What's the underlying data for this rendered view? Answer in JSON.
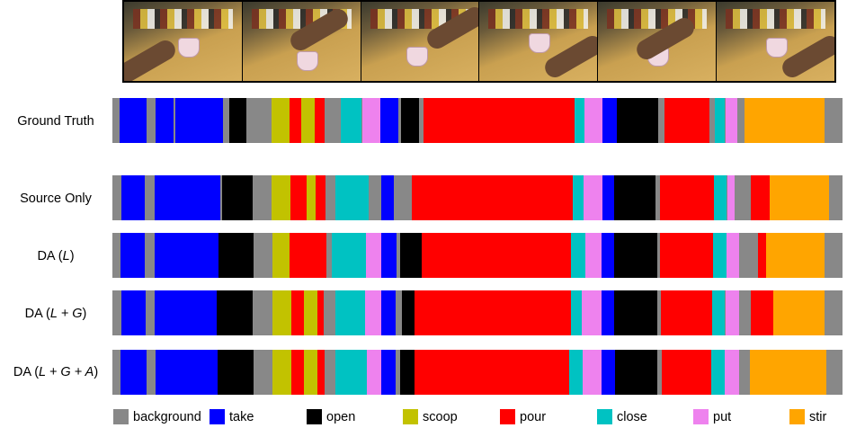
{
  "colors": {
    "background": "#888888",
    "take": "#0000ff",
    "open": "#000000",
    "scoop": "#c2c200",
    "pour": "#ff0000",
    "close": "#00c2c2",
    "put": "#ee82ee",
    "stir": "#ffa500"
  },
  "frames": [
    "frame-1",
    "frame-2",
    "frame-3",
    "frame-4",
    "frame-5",
    "frame-6"
  ],
  "rows": [
    {
      "label_pre": "Ground Truth",
      "label_it": "",
      "label_post": "",
      "segments": [
        [
          "background",
          0,
          8
        ],
        [
          "take",
          8,
          38
        ],
        [
          "background",
          38,
          48
        ],
        [
          "take",
          48,
          68
        ],
        [
          "background",
          68,
          70
        ],
        [
          "take",
          70,
          123
        ],
        [
          "background",
          123,
          130
        ],
        [
          "open",
          130,
          149
        ],
        [
          "background",
          149,
          177
        ],
        [
          "scoop",
          177,
          197
        ],
        [
          "pour",
          197,
          210
        ],
        [
          "scoop",
          210,
          225
        ],
        [
          "pour",
          225,
          236
        ],
        [
          "background",
          236,
          254
        ],
        [
          "close",
          254,
          277
        ],
        [
          "background",
          277,
          278
        ],
        [
          "put",
          278,
          298
        ],
        [
          "take",
          298,
          318
        ],
        [
          "background",
          318,
          321
        ],
        [
          "open",
          321,
          341
        ],
        [
          "background",
          341,
          346
        ],
        [
          "pour",
          346,
          514
        ],
        [
          "close",
          514,
          525
        ],
        [
          "put",
          525,
          545
        ],
        [
          "take",
          545,
          561
        ],
        [
          "open",
          561,
          607
        ],
        [
          "background",
          607,
          614
        ],
        [
          "pour",
          614,
          664
        ],
        [
          "background",
          664,
          670
        ],
        [
          "close",
          670,
          681
        ],
        [
          "background",
          681,
          682
        ],
        [
          "put",
          682,
          695
        ],
        [
          "background",
          695,
          703
        ],
        [
          "stir",
          703,
          792
        ],
        [
          "background",
          792,
          812
        ]
      ]
    },
    {
      "label_pre": "Source Only",
      "label_it": "",
      "label_post": "",
      "segments": [
        [
          "background",
          0,
          10
        ],
        [
          "take",
          10,
          36
        ],
        [
          "background",
          36,
          47
        ],
        [
          "take",
          47,
          120
        ],
        [
          "background",
          120,
          122
        ],
        [
          "open",
          122,
          156
        ],
        [
          "background",
          156,
          177
        ],
        [
          "scoop",
          177,
          198
        ],
        [
          "pour",
          198,
          216
        ],
        [
          "scoop",
          216,
          226
        ],
        [
          "pour",
          226,
          237
        ],
        [
          "background",
          237,
          248
        ],
        [
          "close",
          248,
          285
        ],
        [
          "background",
          285,
          299
        ],
        [
          "take",
          299,
          313
        ],
        [
          "background",
          313,
          333
        ],
        [
          "pour",
          333,
          512
        ],
        [
          "close",
          512,
          524
        ],
        [
          "put",
          524,
          545
        ],
        [
          "take",
          545,
          558
        ],
        [
          "open",
          558,
          604
        ],
        [
          "background",
          604,
          609
        ],
        [
          "pour",
          609,
          669
        ],
        [
          "close",
          669,
          683
        ],
        [
          "background",
          683,
          684
        ],
        [
          "put",
          684,
          692
        ],
        [
          "background",
          692,
          710
        ],
        [
          "pour",
          710,
          731
        ],
        [
          "stir",
          731,
          797
        ],
        [
          "background",
          797,
          812
        ]
      ]
    },
    {
      "label_pre": "DA (",
      "label_it": "L",
      "label_post": ")",
      "segments": [
        [
          "background",
          0,
          9
        ],
        [
          "take",
          9,
          36
        ],
        [
          "background",
          36,
          47
        ],
        [
          "take",
          47,
          118
        ],
        [
          "open",
          118,
          157
        ],
        [
          "background",
          157,
          178
        ],
        [
          "scoop",
          178,
          197
        ],
        [
          "pour",
          197,
          238
        ],
        [
          "background",
          238,
          244
        ],
        [
          "close",
          244,
          282
        ],
        [
          "put",
          282,
          299
        ],
        [
          "take",
          299,
          316
        ],
        [
          "background",
          316,
          320
        ],
        [
          "open",
          320,
          344
        ],
        [
          "pour",
          344,
          510
        ],
        [
          "close",
          510,
          526
        ],
        [
          "put",
          526,
          544
        ],
        [
          "take",
          544,
          558
        ],
        [
          "open",
          558,
          606
        ],
        [
          "background",
          606,
          609
        ],
        [
          "pour",
          609,
          668
        ],
        [
          "close",
          668,
          683
        ],
        [
          "put",
          683,
          697
        ],
        [
          "background",
          697,
          718
        ],
        [
          "pour",
          718,
          727
        ],
        [
          "stir",
          727,
          792
        ],
        [
          "background",
          792,
          812
        ]
      ]
    },
    {
      "label_pre": "DA (",
      "label_it": "L + G",
      "label_post": ")",
      "segments": [
        [
          "background",
          0,
          10
        ],
        [
          "take",
          10,
          37
        ],
        [
          "background",
          37,
          47
        ],
        [
          "take",
          47,
          116
        ],
        [
          "open",
          116,
          156
        ],
        [
          "background",
          156,
          178
        ],
        [
          "scoop",
          178,
          199
        ],
        [
          "pour",
          199,
          213
        ],
        [
          "scoop",
          213,
          228
        ],
        [
          "pour",
          228,
          235
        ],
        [
          "background",
          235,
          248
        ],
        [
          "close",
          248,
          281
        ],
        [
          "put",
          281,
          299
        ],
        [
          "take",
          299,
          315
        ],
        [
          "background",
          315,
          322
        ],
        [
          "open",
          322,
          336
        ],
        [
          "pour",
          336,
          510
        ],
        [
          "close",
          510,
          522
        ],
        [
          "put",
          522,
          544
        ],
        [
          "take",
          544,
          558
        ],
        [
          "open",
          558,
          606
        ],
        [
          "background",
          606,
          610
        ],
        [
          "pour",
          610,
          667
        ],
        [
          "close",
          667,
          681
        ],
        [
          "background",
          681,
          682
        ],
        [
          "put",
          682,
          697
        ],
        [
          "background",
          697,
          710
        ],
        [
          "pour",
          710,
          735
        ],
        [
          "stir",
          735,
          792
        ],
        [
          "background",
          792,
          812
        ]
      ]
    },
    {
      "label_pre": "DA (",
      "label_it": "L + G + A",
      "label_post": ")",
      "segments": [
        [
          "background",
          0,
          9
        ],
        [
          "take",
          9,
          38
        ],
        [
          "background",
          38,
          48
        ],
        [
          "take",
          48,
          117
        ],
        [
          "open",
          117,
          157
        ],
        [
          "background",
          157,
          178
        ],
        [
          "scoop",
          178,
          199
        ],
        [
          "pour",
          199,
          213
        ],
        [
          "scoop",
          213,
          228
        ],
        [
          "pour",
          228,
          236
        ],
        [
          "background",
          236,
          248
        ],
        [
          "close",
          248,
          283
        ],
        [
          "put",
          283,
          299
        ],
        [
          "take",
          299,
          315
        ],
        [
          "background",
          315,
          320
        ],
        [
          "open",
          320,
          336
        ],
        [
          "pour",
          336,
          508
        ],
        [
          "close",
          508,
          523
        ],
        [
          "put",
          523,
          544
        ],
        [
          "take",
          544,
          559
        ],
        [
          "open",
          559,
          606
        ],
        [
          "background",
          606,
          611
        ],
        [
          "pour",
          611,
          666
        ],
        [
          "close",
          666,
          681
        ],
        [
          "put",
          681,
          697
        ],
        [
          "background",
          697,
          709
        ],
        [
          "stir",
          709,
          794
        ],
        [
          "background",
          794,
          812
        ]
      ]
    }
  ],
  "legend": [
    {
      "key": "background",
      "label": "background"
    },
    {
      "key": "take",
      "label": "take"
    },
    {
      "key": "open",
      "label": "open"
    },
    {
      "key": "scoop",
      "label": "scoop"
    },
    {
      "key": "pour",
      "label": "pour"
    },
    {
      "key": "close",
      "label": "close"
    },
    {
      "key": "put",
      "label": "put"
    },
    {
      "key": "stir",
      "label": "stir"
    }
  ]
}
